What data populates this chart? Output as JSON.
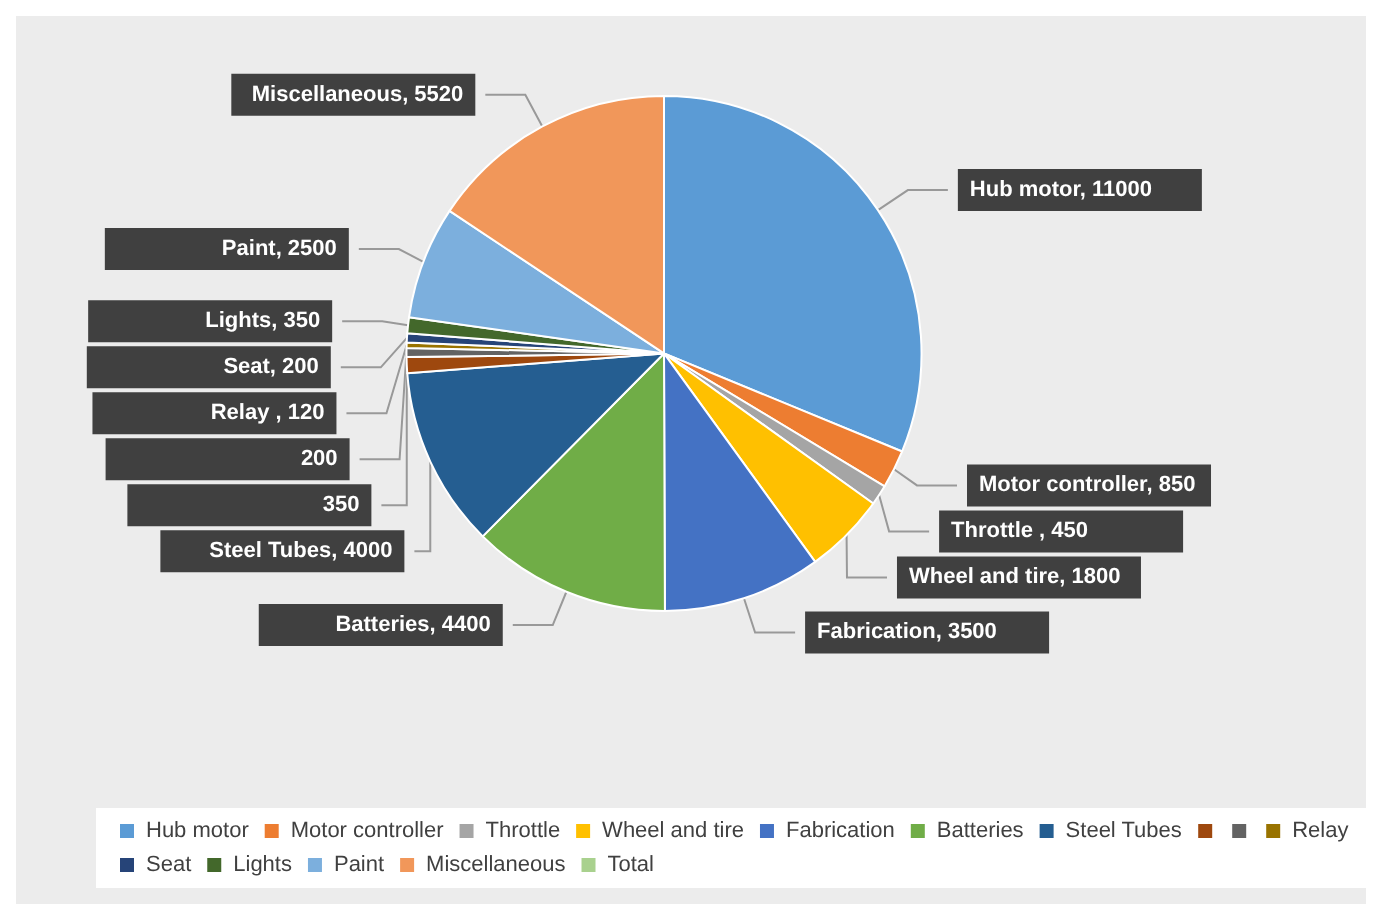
{
  "chart_data": {
    "type": "pie",
    "categories": [
      "Hub motor",
      "Motor controller",
      "Throttle",
      "Wheel and tire",
      "Fabrication",
      "Batteries",
      "Steel Tubes",
      null,
      null,
      "Relay",
      "Seat",
      "Lights",
      "Paint",
      "Miscellaneous",
      "Total"
    ],
    "values": [
      11000,
      850,
      450,
      1800,
      3500,
      4400,
      4000,
      350,
      200,
      120,
      200,
      350,
      2500,
      5520,
      null
    ],
    "colors": [
      "#5b9bd5",
      "#ed7d31",
      "#a5a5a5",
      "#ffc000",
      "#4472c4",
      "#70ad47",
      "#255e91",
      "#9e480e",
      "#636363",
      "#997300",
      "#264478",
      "#43682b",
      "#7cafdd",
      "#f1975a",
      "#a9d18e"
    ],
    "value_labels": [
      "Hub motor, 11000",
      "Motor controller, 850",
      "Throttle , 450",
      "Wheel and tire, 1800",
      "Fabrication, 3500",
      "Batteries, 4400",
      "Steel Tubes, 4000",
      "350",
      "200",
      "Relay , 120",
      "Seat, 200",
      "Lights, 350",
      "Paint, 2500",
      "Miscellaneous, 5520",
      null
    ],
    "legend": "bottom"
  }
}
